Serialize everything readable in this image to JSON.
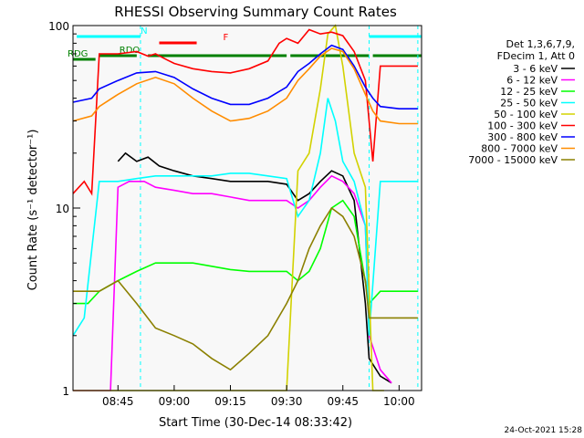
{
  "chart_data": {
    "type": "line",
    "title": "RHESSI Observing Summary Count Rates",
    "xlabel": "Start Time (30-Dec-14 08:33:42)",
    "ylabel": "Count Rate (s⁻¹ detector⁻¹)",
    "yscale": "log",
    "ylim": [
      1,
      100
    ],
    "xlim": [
      "08:33",
      "10:06"
    ],
    "x_ticks": [
      "08:45",
      "09:00",
      "09:15",
      "09:30",
      "09:45",
      "10:00"
    ],
    "y_ticks": [
      "1",
      "10",
      "100"
    ],
    "grid": false,
    "background": "#f8f8f8",
    "legend_position": "right",
    "legend_header": [
      "Det 1,3,6,7,9,",
      "FDecim 1, Att 0"
    ],
    "timestamp": "24-Oct-2021 15:28",
    "flags": [
      {
        "label": "N",
        "color": "#00ffff",
        "segments": [
          [
            "08:34",
            "08:51"
          ],
          [
            "09:52",
            "10:06"
          ]
        ]
      },
      {
        "label": "F",
        "color": "#ff0000",
        "segments": [
          [
            "08:56",
            "09:06"
          ]
        ]
      },
      {
        "label": "RDO",
        "color": "#008000",
        "segments": [
          [
            "08:40",
            "08:50"
          ],
          [
            "08:53",
            "09:30"
          ],
          [
            "09:31",
            "09:52"
          ],
          [
            "09:53",
            "10:06"
          ]
        ]
      },
      {
        "label": "RDG",
        "color": "#008000",
        "segments": [
          [
            "08:33",
            "08:39"
          ]
        ]
      }
    ],
    "series": [
      {
        "name": "3 - 6 keV",
        "color": "#000000",
        "x": [
          "08:35",
          "08:40",
          "08:43",
          "08:45",
          "08:47",
          "08:50",
          "08:53",
          "08:56",
          "09:00",
          "09:05",
          "09:10",
          "09:15",
          "09:20",
          "09:25",
          "09:30",
          "09:33",
          "09:36",
          "09:39",
          "09:42",
          "09:45",
          "09:48",
          "09:51",
          "09:52",
          "09:55",
          "09:58"
        ],
        "y": [
          null,
          null,
          null,
          18,
          20,
          18,
          19,
          17,
          16,
          15,
          14.5,
          14,
          14,
          14,
          13.5,
          11,
          12,
          14,
          16,
          15,
          11,
          3,
          1.5,
          1.2,
          1.1
        ]
      },
      {
        "name": "6 - 12 keV",
        "color": "#ff00ff",
        "x": [
          "08:33",
          "08:40",
          "08:43",
          "08:45",
          "08:48",
          "08:52",
          "08:55",
          "09:00",
          "09:05",
          "09:10",
          "09:15",
          "09:20",
          "09:25",
          "09:30",
          "09:33",
          "09:36",
          "09:39",
          "09:42",
          "09:45",
          "09:48",
          "09:51",
          "09:52",
          "09:55",
          "09:58"
        ],
        "y": [
          1,
          1,
          1,
          13,
          14,
          14,
          13,
          12.5,
          12,
          12,
          11.5,
          11,
          11,
          11,
          10,
          11,
          13,
          15,
          14,
          12,
          8,
          2,
          1.3,
          1.1
        ]
      },
      {
        "name": "12 - 25 keV",
        "color": "#00ff00",
        "x": [
          "08:33",
          "08:37",
          "08:40",
          "08:45",
          "08:50",
          "08:55",
          "09:00",
          "09:05",
          "09:10",
          "09:15",
          "09:20",
          "09:25",
          "09:30",
          "09:33",
          "09:36",
          "09:39",
          "09:42",
          "09:45",
          "09:48",
          "09:52",
          "09:55",
          "10:00",
          "10:05"
        ],
        "y": [
          3,
          3,
          3.5,
          4,
          4.5,
          5,
          5,
          5,
          4.8,
          4.6,
          4.5,
          4.5,
          4.5,
          4,
          4.5,
          6,
          10,
          11,
          9,
          3,
          3.5,
          3.5,
          3.5
        ]
      },
      {
        "name": "25 - 50 keV",
        "color": "#00ffff",
        "x": [
          "08:33",
          "08:36",
          "08:40",
          "08:45",
          "08:50",
          "08:55",
          "09:00",
          "09:05",
          "09:10",
          "09:15",
          "09:20",
          "09:25",
          "09:30",
          "09:33",
          "09:36",
          "09:39",
          "09:41",
          "09:43",
          "09:45",
          "09:48",
          "09:51",
          "09:52",
          "09:55",
          "10:00",
          "10:05"
        ],
        "y": [
          2,
          2.5,
          14,
          14,
          14.5,
          15,
          15,
          15,
          15,
          15.5,
          15.5,
          15,
          14.5,
          9,
          11,
          20,
          40,
          30,
          18,
          14,
          8,
          2,
          14,
          14,
          14
        ]
      },
      {
        "name": "50 - 100 keV",
        "color": "#d2d200",
        "x": [
          "08:33",
          "08:40",
          "08:43",
          "08:45",
          "08:50",
          "08:55",
          "09:00",
          "09:05",
          "09:10",
          "09:15",
          "09:20",
          "09:25",
          "09:30",
          "09:33",
          "09:36",
          "09:39",
          "09:41",
          "09:43",
          "09:45",
          "09:48",
          "09:51",
          "09:53",
          "09:56"
        ],
        "y": [
          1,
          1,
          1,
          1,
          1,
          1,
          1,
          1,
          1,
          1,
          1,
          1,
          1,
          16,
          20,
          45,
          90,
          100,
          60,
          20,
          13,
          1,
          1
        ]
      },
      {
        "name": "100 - 300 keV",
        "color": "#ff0000",
        "x": [
          "08:33",
          "08:36",
          "08:38",
          "08:40",
          "08:45",
          "08:50",
          "08:53",
          "08:55",
          "08:58",
          "09:00",
          "09:05",
          "09:10",
          "09:15",
          "09:20",
          "09:25",
          "09:28",
          "09:30",
          "09:33",
          "09:36",
          "09:39",
          "09:42",
          "09:45",
          "09:48",
          "09:51",
          "09:53",
          "09:55",
          "10:00",
          "10:05"
        ],
        "y": [
          12,
          14,
          12,
          70,
          70,
          72,
          68,
          70,
          65,
          62,
          58,
          56,
          55,
          58,
          64,
          80,
          85,
          80,
          95,
          90,
          92,
          88,
          72,
          50,
          18,
          60,
          60,
          60
        ]
      },
      {
        "name": "300 - 800 keV",
        "color": "#0000ff",
        "x": [
          "08:33",
          "08:38",
          "08:40",
          "08:45",
          "08:50",
          "08:55",
          "09:00",
          "09:05",
          "09:10",
          "09:15",
          "09:20",
          "09:25",
          "09:30",
          "09:33",
          "09:36",
          "09:39",
          "09:42",
          "09:45",
          "09:48",
          "09:51",
          "09:53",
          "09:55",
          "10:00",
          "10:05"
        ],
        "y": [
          38,
          40,
          45,
          50,
          55,
          56,
          52,
          45,
          40,
          37,
          37,
          40,
          46,
          56,
          62,
          70,
          78,
          74,
          60,
          46,
          40,
          36,
          35,
          35
        ]
      },
      {
        "name": "800 - 7000 keV",
        "color": "#ff8c00",
        "x": [
          "08:33",
          "08:38",
          "08:40",
          "08:45",
          "08:50",
          "08:55",
          "09:00",
          "09:05",
          "09:10",
          "09:15",
          "09:20",
          "09:25",
          "09:30",
          "09:33",
          "09:36",
          "09:39",
          "09:42",
          "09:45",
          "09:48",
          "09:51",
          "09:53",
          "09:55",
          "10:00",
          "10:05"
        ],
        "y": [
          30,
          32,
          36,
          42,
          48,
          52,
          48,
          40,
          34,
          30,
          31,
          34,
          40,
          50,
          58,
          68,
          75,
          72,
          58,
          42,
          34,
          30,
          29,
          29
        ]
      },
      {
        "name": "7000 - 15000 keV",
        "color": "#8b8000",
        "x": [
          "08:33",
          "08:40",
          "08:45",
          "08:50",
          "08:55",
          "09:00",
          "09:05",
          "09:10",
          "09:15",
          "09:20",
          "09:25",
          "09:30",
          "09:33",
          "09:36",
          "09:39",
          "09:42",
          "09:45",
          "09:48",
          "09:51",
          "09:52",
          "09:55",
          "10:00",
          "10:05"
        ],
        "y": [
          3.5,
          3.5,
          4,
          3,
          2.2,
          2,
          1.8,
          1.5,
          1.3,
          1.6,
          2,
          3,
          4,
          6,
          8,
          10,
          9,
          7,
          4,
          2.5,
          2.5,
          2.5,
          2.5
        ]
      }
    ]
  }
}
